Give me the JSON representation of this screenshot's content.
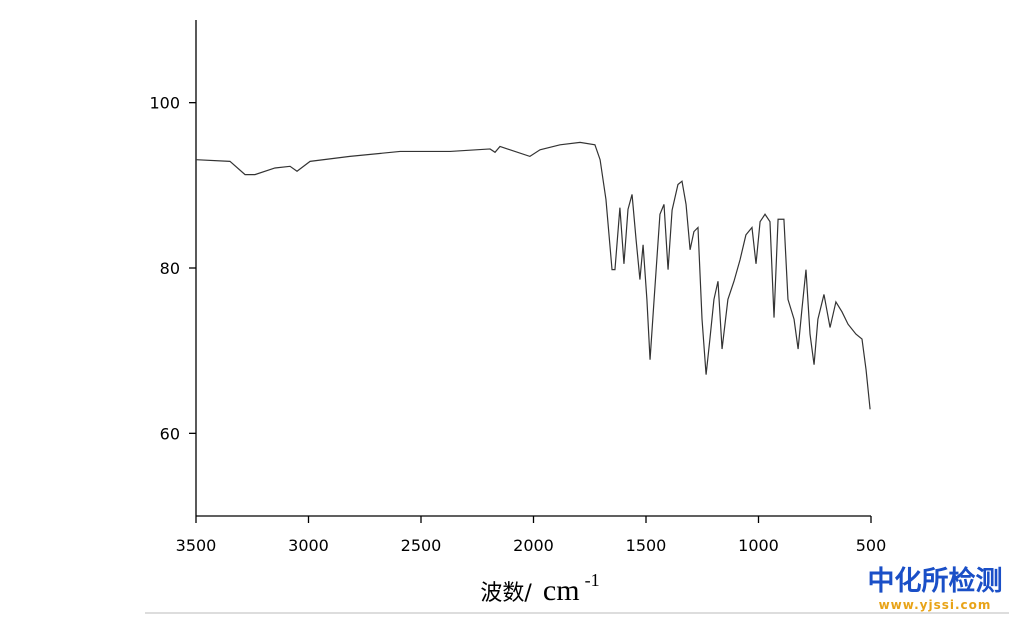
{
  "chart_data": {
    "type": "line",
    "xlabel": "波数/",
    "xlabel_unit": "cm",
    "xlabel_unit_power": "-1",
    "watermark": "中化所检测",
    "watermark_url": "www.yjssi.com",
    "xlim": [
      3500,
      500
    ],
    "ylim": [
      50,
      110
    ],
    "xticks": [
      3500,
      3000,
      2500,
      2000,
      1500,
      1000,
      500
    ],
    "yticks": [
      60,
      80,
      100
    ],
    "grid": false,
    "series": [
      {
        "color": "#333333",
        "x": [
          3500,
          3349,
          3282,
          3238,
          3149,
          3082,
          3051,
          2993,
          2816,
          2593,
          2371,
          2193,
          2171,
          2149,
          2016,
          1971,
          1882,
          1793,
          1727,
          1704,
          1678,
          1651,
          1638,
          1616,
          1598,
          1580,
          1562,
          1544,
          1527,
          1513,
          1496,
          1482,
          1464,
          1438,
          1420,
          1402,
          1384,
          1358,
          1340,
          1322,
          1304,
          1287,
          1269,
          1251,
          1233,
          1216,
          1198,
          1180,
          1162,
          1136,
          1109,
          1082,
          1056,
          1029,
          1011,
          993,
          971,
          949,
          931,
          913,
          887,
          869,
          842,
          824,
          807,
          789,
          771,
          753,
          736,
          709,
          682,
          656,
          629,
          602,
          567,
          540,
          522,
          504
        ],
        "values": [
          93.1,
          92.9,
          91.3,
          91.3,
          92.1,
          92.3,
          91.7,
          92.9,
          93.5,
          94.1,
          94.1,
          94.4,
          94.0,
          94.7,
          93.5,
          94.3,
          94.9,
          95.2,
          94.9,
          93.1,
          88.3,
          79.8,
          79.8,
          87.3,
          80.5,
          87.1,
          88.9,
          83.4,
          78.6,
          82.8,
          76.2,
          68.9,
          76.2,
          86.5,
          87.7,
          79.8,
          87.0,
          90.1,
          90.5,
          87.7,
          82.2,
          84.4,
          84.9,
          73.8,
          67.1,
          71.4,
          76.2,
          78.4,
          70.2,
          76.2,
          78.4,
          81.0,
          84.0,
          84.9,
          80.5,
          85.6,
          86.5,
          85.6,
          74.0,
          85.9,
          85.9,
          76.2,
          73.8,
          70.2,
          75.0,
          79.8,
          72.0,
          68.3,
          73.8,
          76.8,
          72.8,
          75.9,
          74.7,
          73.2,
          72.0,
          71.4,
          67.7,
          62.9
        ]
      }
    ]
  }
}
